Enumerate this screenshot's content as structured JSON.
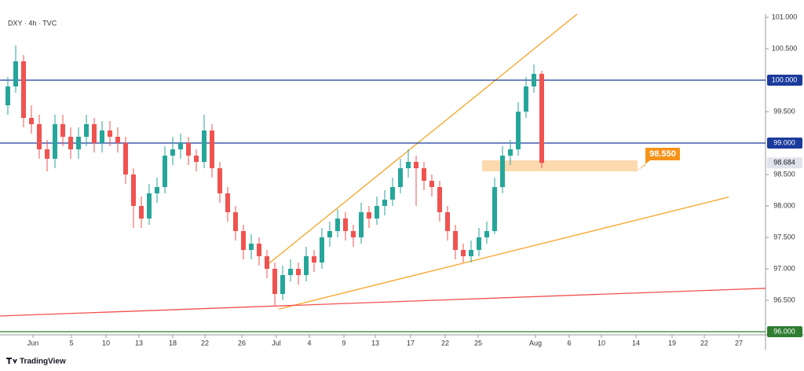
{
  "chart_data": {
    "type": "candlestick",
    "title": "DXY · 4h · TVC",
    "footer": "TradingView",
    "x": [
      1,
      2,
      3,
      4,
      5,
      6,
      7,
      8,
      9,
      10,
      11,
      12,
      13,
      14,
      15,
      16,
      17,
      18,
      19,
      20,
      21,
      22,
      23,
      24,
      25,
      26,
      27,
      28,
      29,
      30,
      31,
      32,
      33,
      34,
      35,
      36,
      37,
      38,
      39,
      40,
      41,
      42,
      43,
      44,
      45,
      46,
      47,
      48,
      49,
      50,
      51,
      52,
      53,
      54,
      55,
      56,
      57,
      58,
      59,
      60,
      61,
      62,
      63,
      64,
      65,
      66,
      67,
      68,
      69
    ],
    "open": [
      99.6,
      99.9,
      100.3,
      99.4,
      99.3,
      98.9,
      98.75,
      99.3,
      99.1,
      98.9,
      99.1,
      99.3,
      99.0,
      99.2,
      99.1,
      99.0,
      98.5,
      98.0,
      97.8,
      98.2,
      98.3,
      98.8,
      98.9,
      99.0,
      98.8,
      98.7,
      99.2,
      98.6,
      98.2,
      97.9,
      97.6,
      97.3,
      97.4,
      97.2,
      97.0,
      96.6,
      96.9,
      97.0,
      96.9,
      97.2,
      97.1,
      97.5,
      97.6,
      97.8,
      97.6,
      97.5,
      97.9,
      97.8,
      98.0,
      98.1,
      98.3,
      98.6,
      98.7,
      98.6,
      98.4,
      98.3,
      97.9,
      97.6,
      97.3,
      97.2,
      97.3,
      97.5,
      97.6,
      98.3,
      98.8,
      98.9,
      99.5,
      99.9,
      100.1
    ],
    "high": [
      100.05,
      100.55,
      100.4,
      99.6,
      99.45,
      99.05,
      99.45,
      99.45,
      99.25,
      99.25,
      99.45,
      99.4,
      99.35,
      99.35,
      99.25,
      99.1,
      98.6,
      98.15,
      98.35,
      98.45,
      98.95,
      99.1,
      99.15,
      99.1,
      98.9,
      99.45,
      99.3,
      98.7,
      98.3,
      98.0,
      97.7,
      97.55,
      97.5,
      97.3,
      97.1,
      97.05,
      97.15,
      97.1,
      97.35,
      97.3,
      97.65,
      97.75,
      97.95,
      97.9,
      97.7,
      98.05,
      98.0,
      98.15,
      98.25,
      98.45,
      98.75,
      98.9,
      98.8,
      98.7,
      98.5,
      98.4,
      98.0,
      97.7,
      97.4,
      97.45,
      97.65,
      97.75,
      98.45,
      98.95,
      99.05,
      99.65,
      100.05,
      100.25,
      100.15
    ],
    "low": [
      99.45,
      99.8,
      99.25,
      99.15,
      98.75,
      98.55,
      98.6,
      98.95,
      98.75,
      98.75,
      98.95,
      98.85,
      98.85,
      98.95,
      98.85,
      98.35,
      97.65,
      97.65,
      97.7,
      98.05,
      98.2,
      98.65,
      98.75,
      98.65,
      98.55,
      98.6,
      98.45,
      98.05,
      97.75,
      97.45,
      97.15,
      97.15,
      97.05,
      96.85,
      96.42,
      96.5,
      96.8,
      96.75,
      96.8,
      96.95,
      97.0,
      97.35,
      97.5,
      97.45,
      97.35,
      97.4,
      97.65,
      97.7,
      97.85,
      98.0,
      98.2,
      98.45,
      98.0,
      98.25,
      98.15,
      97.75,
      97.45,
      97.15,
      97.1,
      97.1,
      97.2,
      97.4,
      97.55,
      98.2,
      98.65,
      98.8,
      99.4,
      99.8,
      98.6
    ],
    "close": [
      99.9,
      100.3,
      99.4,
      99.3,
      98.9,
      98.75,
      99.3,
      99.1,
      98.9,
      99.1,
      99.3,
      99.0,
      99.2,
      99.1,
      99.0,
      98.5,
      98.0,
      97.8,
      98.2,
      98.3,
      98.8,
      98.9,
      99.0,
      98.8,
      98.7,
      99.2,
      98.6,
      98.2,
      97.9,
      97.6,
      97.3,
      97.4,
      97.2,
      97.0,
      96.6,
      96.9,
      97.0,
      96.9,
      97.2,
      97.1,
      97.5,
      97.6,
      97.8,
      97.6,
      97.5,
      97.9,
      97.8,
      98.0,
      98.1,
      98.3,
      98.6,
      98.7,
      98.6,
      98.4,
      98.3,
      97.9,
      97.6,
      97.3,
      97.2,
      97.3,
      97.5,
      97.6,
      98.3,
      98.8,
      98.9,
      99.5,
      99.9,
      100.1,
      98.684
    ],
    "up_color": "#26a69a",
    "down_color": "#ef5350",
    "xlim": [
      0,
      97.5
    ],
    "ylim": [
      95.95,
      101.05
    ],
    "xticks": [
      {
        "value": 4.2,
        "label": "Jun"
      },
      {
        "value": 9.1,
        "label": "5"
      },
      {
        "value": 13.5,
        "label": "10"
      },
      {
        "value": 17.7,
        "label": "13"
      },
      {
        "value": 22,
        "label": "18"
      },
      {
        "value": 26.1,
        "label": "22"
      },
      {
        "value": 30.8,
        "label": "26"
      },
      {
        "value": 35.2,
        "label": "Jul"
      },
      {
        "value": 39.4,
        "label": "4"
      },
      {
        "value": 43.8,
        "label": "9"
      },
      {
        "value": 47.8,
        "label": "13"
      },
      {
        "value": 52.3,
        "label": "17"
      },
      {
        "value": 56.7,
        "label": "22"
      },
      {
        "value": 60.9,
        "label": "25"
      },
      {
        "value": 68.2,
        "label": "Aug"
      },
      {
        "value": 72.5,
        "label": "6"
      },
      {
        "value": 76.6,
        "label": "10"
      },
      {
        "value": 81,
        "label": "14"
      },
      {
        "value": 85.6,
        "label": "19"
      },
      {
        "value": 89.7,
        "label": "22"
      },
      {
        "value": 94.1,
        "label": "27"
      }
    ],
    "yticks": [
      {
        "value": 101,
        "label": "101.000"
      },
      {
        "value": 100.5,
        "label": "100.500"
      },
      {
        "value": 99.5,
        "label": "99.500"
      },
      {
        "value": 98.5,
        "label": "98.500"
      },
      {
        "value": 98,
        "label": "98.000"
      },
      {
        "value": 97.5,
        "label": "97.500"
      },
      {
        "value": 97,
        "label": "97.000"
      },
      {
        "value": 96.5,
        "label": "96.500"
      }
    ],
    "levels": [
      {
        "value": 100,
        "label": "100.000",
        "color": "#1a3a9c"
      },
      {
        "value": 99,
        "label": "99.000",
        "color": "#1a3a9c"
      },
      {
        "value": 96,
        "label": "96.000",
        "color": "#2e7d32"
      }
    ],
    "last_price": {
      "value": 98.684,
      "label": "98.684"
    },
    "zone": {
      "x": [
        61.4,
        81.2
      ],
      "y": [
        98.55,
        98.725
      ],
      "label": "98.550",
      "color": "#f7931a"
    },
    "lines": [
      {
        "color": "#f7a325",
        "points": [
          [
            34.3,
            97.09
          ],
          [
            73.5,
            101.05
          ]
        ]
      },
      {
        "color": "#f7a325",
        "points": [
          [
            35.5,
            96.36
          ],
          [
            92.8,
            98.14
          ]
        ]
      },
      {
        "color": "#ef5350",
        "points": [
          [
            0,
            96.25
          ],
          [
            97.5,
            96.69
          ]
        ]
      }
    ]
  }
}
